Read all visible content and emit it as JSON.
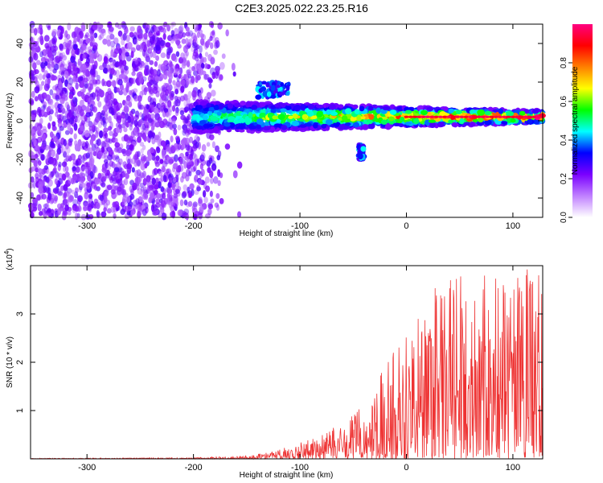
{
  "title": "C2E3.2025.022.23.25.R16",
  "chart_data": [
    {
      "type": "heatmap",
      "ylabel": "Frequency (Hz)",
      "xlabel": "Height of straight line (km)",
      "xlim": [
        -353,
        128
      ],
      "ylim": [
        -50,
        50
      ],
      "xticks": [
        -300,
        -200,
        -100,
        0,
        100
      ],
      "yticks": [
        -40,
        -20,
        0,
        20,
        40
      ],
      "colorbar": {
        "label": "Normalized spectral amplitude",
        "range": [
          0,
          1
        ],
        "ticks": [
          "0.0",
          "0.2",
          "0.4",
          "0.6",
          "0.8"
        ],
        "tick_values": [
          0.0,
          0.2,
          0.4,
          0.6,
          0.8
        ],
        "colormap": [
          "#ffffff",
          "#c080ff",
          "#7a00ff",
          "#0000ff",
          "#00ffff",
          "#00ff00",
          "#ffff00",
          "#ff8000",
          "#ff0000",
          "#ff0080"
        ]
      },
      "regions": [
        {
          "name": "noise",
          "x": [
            -353,
            -175
          ],
          "y": [
            -50,
            50
          ],
          "amplitude": 0.12
        },
        {
          "name": "main-band",
          "x": [
            -200,
            128
          ],
          "center_frequency": 2,
          "amplitude_start": 0.35,
          "amplitude_end": 0.95
        },
        {
          "name": "upper-echo",
          "x": [
            -140,
            -110
          ],
          "center_frequency": 16,
          "amplitude": 0.25
        },
        {
          "name": "lower-echo",
          "x": [
            -45,
            -40
          ],
          "center_frequency": -16,
          "amplitude": 0.25
        }
      ]
    },
    {
      "type": "line",
      "ylabel": "SNR (10 * v/v)",
      "y_multiplier": "(x10",
      "y_multiplier_exp": "4",
      "xlabel": "Height of straight line (km)",
      "xlim": [
        -353,
        128
      ],
      "ylim": [
        0,
        4
      ],
      "xticks": [
        -300,
        -200,
        -100,
        0,
        100
      ],
      "yticks": [
        1,
        2,
        3
      ],
      "color": "#ee3333",
      "envelope": {
        "x": [
          -353,
          -200,
          -150,
          -120,
          -100,
          -80,
          -60,
          -40,
          -20,
          0,
          20,
          40,
          60,
          80,
          100,
          128
        ],
        "y": [
          0.01,
          0.02,
          0.05,
          0.15,
          0.3,
          0.4,
          0.6,
          0.9,
          1.6,
          2.2,
          2.8,
          3.0,
          3.2,
          3.1,
          3.0,
          3.3
        ]
      }
    }
  ]
}
